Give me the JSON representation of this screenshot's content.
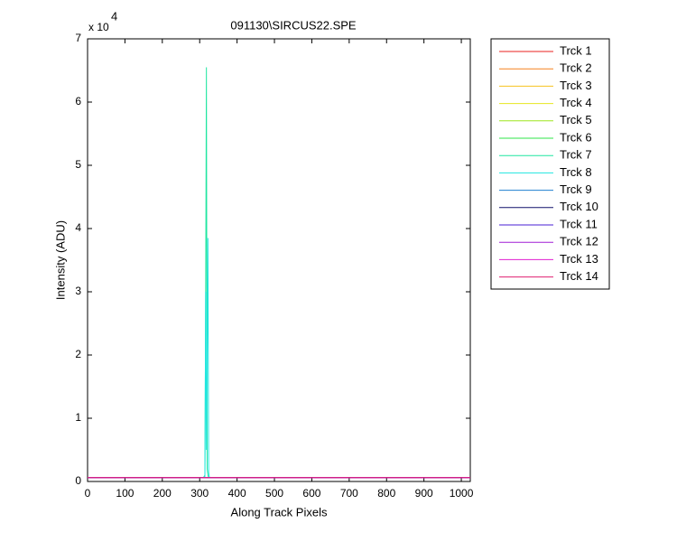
{
  "chart_data": {
    "type": "line",
    "title": "091130\\SIRCUS22.SPE",
    "x_label": "Along Track Pixels",
    "y_label": "Intensity (ADU)",
    "y_multiplier": {
      "base": "x 10",
      "exponent": "4"
    },
    "x": [
      0,
      310,
      314,
      316,
      318,
      320,
      322,
      324,
      326,
      330,
      1024
    ],
    "xlim": [
      0,
      1024
    ],
    "xticks": [
      0,
      100,
      200,
      300,
      400,
      500,
      600,
      700,
      800,
      900,
      1000
    ],
    "ylim": [
      0,
      70000
    ],
    "yticks": [
      {
        "value": 0,
        "label": "0"
      },
      {
        "value": 10000,
        "label": "1"
      },
      {
        "value": 20000,
        "label": "2"
      },
      {
        "value": 30000,
        "label": "3"
      },
      {
        "value": 40000,
        "label": "4"
      },
      {
        "value": 50000,
        "label": "5"
      },
      {
        "value": 60000,
        "label": "6"
      },
      {
        "value": 70000,
        "label": "7"
      }
    ],
    "grid": false,
    "legend": "outside-right",
    "series": [
      {
        "name": "Trck 1",
        "color": "#e8211f",
        "values": [
          600,
          600,
          600,
          600,
          600,
          600,
          600,
          600,
          600,
          600,
          600
        ]
      },
      {
        "name": "Trck 2",
        "color": "#f5811f",
        "values": [
          600,
          600,
          600,
          600,
          600,
          600,
          600,
          600,
          600,
          600,
          600
        ]
      },
      {
        "name": "Trck 3",
        "color": "#f7c21f",
        "values": [
          600,
          600,
          600,
          600,
          600,
          600,
          600,
          600,
          600,
          600,
          600
        ]
      },
      {
        "name": "Trck 4",
        "color": "#e6e61f",
        "values": [
          600,
          600,
          600,
          600,
          600,
          600,
          600,
          600,
          600,
          600,
          600
        ]
      },
      {
        "name": "Trck 5",
        "color": "#9de61f",
        "values": [
          600,
          600,
          600,
          600,
          600,
          600,
          600,
          600,
          600,
          600,
          600
        ]
      },
      {
        "name": "Trck 6",
        "color": "#2fe64a",
        "values": [
          600,
          600,
          600,
          600,
          600,
          600,
          600,
          600,
          600,
          600,
          600
        ]
      },
      {
        "name": "Trck 7",
        "color": "#1fe6a0",
        "values": [
          600,
          600,
          1000,
          30000,
          65500,
          2000,
          1000,
          600,
          600,
          600,
          600
        ]
      },
      {
        "name": "Trck 8",
        "color": "#1fe6e0",
        "values": [
          600,
          600,
          800,
          30000,
          5000,
          20000,
          38500,
          1500,
          600,
          600,
          600
        ]
      },
      {
        "name": "Trck 9",
        "color": "#1f7fd0",
        "values": [
          600,
          600,
          600,
          600,
          600,
          600,
          600,
          600,
          600,
          600,
          600
        ]
      },
      {
        "name": "Trck 10",
        "color": "#10106a",
        "values": [
          600,
          600,
          600,
          600,
          600,
          600,
          600,
          600,
          600,
          600,
          600
        ]
      },
      {
        "name": "Trck 11",
        "color": "#4a1fd6",
        "values": [
          600,
          600,
          600,
          600,
          600,
          600,
          600,
          600,
          600,
          600,
          600
        ]
      },
      {
        "name": "Trck 12",
        "color": "#a01fd6",
        "values": [
          600,
          600,
          600,
          600,
          600,
          600,
          600,
          600,
          600,
          600,
          600
        ]
      },
      {
        "name": "Trck 13",
        "color": "#e01fd0",
        "values": [
          600,
          600,
          600,
          600,
          600,
          600,
          600,
          600,
          600,
          600,
          600
        ]
      },
      {
        "name": "Trck 14",
        "color": "#e01f70",
        "values": [
          600,
          600,
          600,
          600,
          600,
          600,
          600,
          600,
          600,
          600,
          600
        ]
      }
    ]
  }
}
